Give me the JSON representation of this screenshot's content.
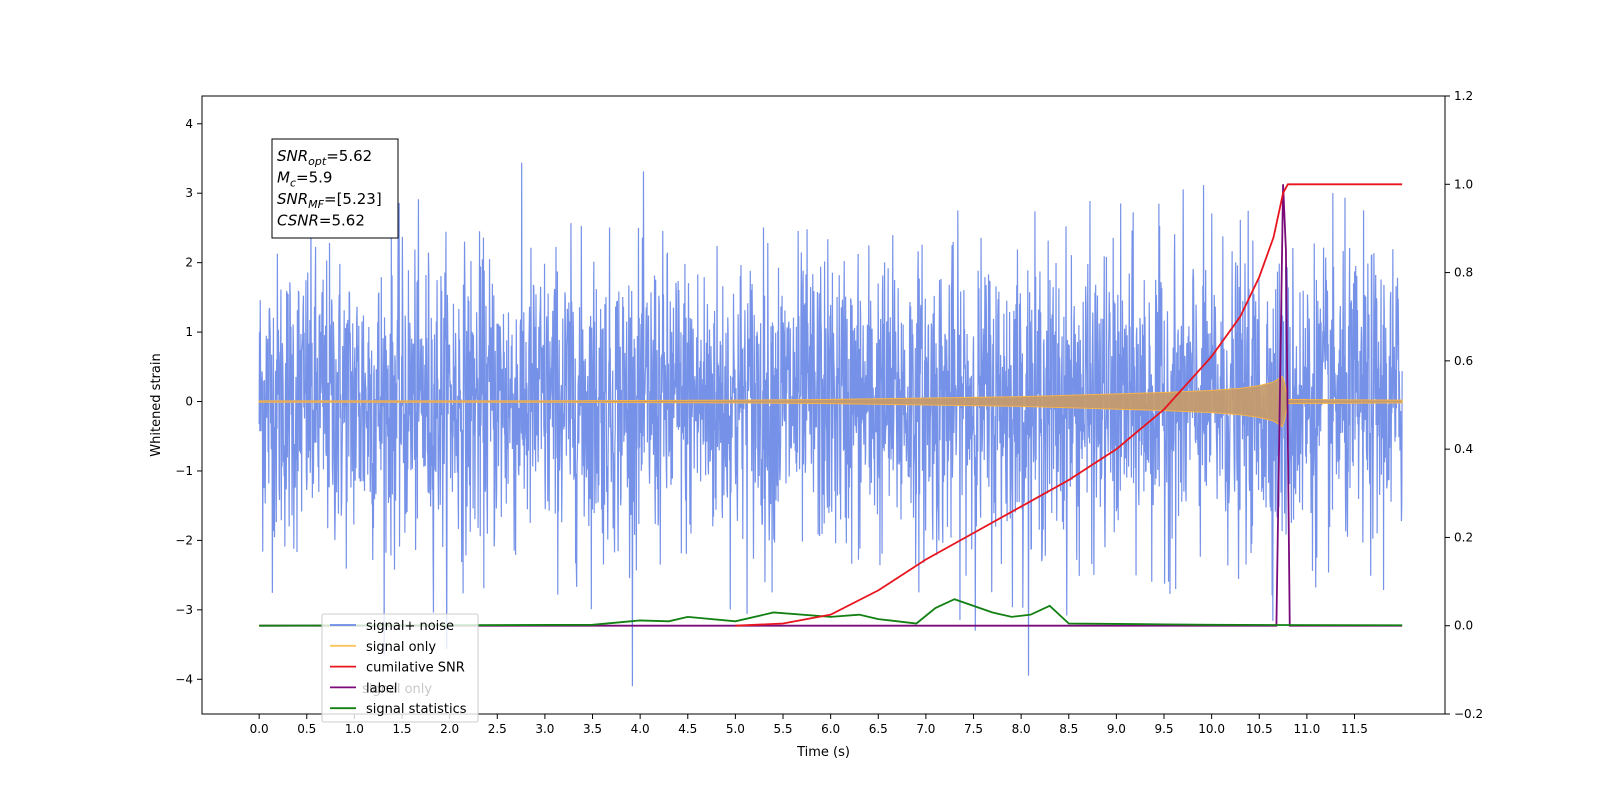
{
  "chart_data": {
    "type": "line",
    "xlabel": "Time (s)",
    "ylabel": "Whitened strain",
    "xlim": [
      -0.6,
      12.45
    ],
    "ylim": [
      -4.5,
      4.4
    ],
    "ylim_right": [
      -0.2,
      1.2
    ],
    "x_ticks": [
      "0.0",
      "0.5",
      "1.0",
      "1.5",
      "2.0",
      "2.5",
      "3.0",
      "3.5",
      "4.0",
      "4.5",
      "5.0",
      "5.5",
      "6.0",
      "6.5",
      "7.0",
      "7.5",
      "8.0",
      "8.5",
      "9.0",
      "9.5",
      "10.0",
      "10.5",
      "11.0",
      "11.5"
    ],
    "y_ticks_left": [
      "−4",
      "−3",
      "−2",
      "−1",
      "0",
      "1",
      "2",
      "3",
      "4"
    ],
    "y_ticks_right": [
      "−0.2",
      "0.0",
      "0.2",
      "0.4",
      "0.6",
      "0.8",
      "1.0",
      "1.2"
    ],
    "grid": false,
    "legend_position": "lower-left",
    "annotation": [
      {
        "main": "SNR",
        "sub": "opt",
        "value": "=5.62"
      },
      {
        "main": "M",
        "sub": "c",
        "value": "=5.9"
      },
      {
        "main": "SNR",
        "sub": "MF",
        "value": "=[5.23]"
      },
      {
        "main": "CSNR",
        "sub": "",
        "value": "=5.62"
      }
    ],
    "series": [
      {
        "name": "signal+ noise",
        "color": "#6a89e6",
        "axis": "left",
        "description_x_range": [
          0.0,
          12.0
        ],
        "amplitude_range": [
          -4.1,
          4.05
        ]
      },
      {
        "name": "signal only",
        "color": "#f5b34a",
        "axis": "left",
        "x": [
          0.0,
          3.0,
          5.0,
          6.0,
          7.0,
          8.0,
          9.0,
          9.5,
          10.0,
          10.3,
          10.5,
          10.65,
          10.75,
          10.8,
          12.0
        ],
        "envelope": [
          0.01,
          0.01,
          0.02,
          0.03,
          0.05,
          0.07,
          0.11,
          0.13,
          0.16,
          0.19,
          0.23,
          0.28,
          0.37,
          0.03,
          0.02
        ]
      },
      {
        "name": "cumilative SNR",
        "color": "#e8141e",
        "axis": "right",
        "x": [
          5.0,
          5.5,
          6.0,
          6.5,
          7.0,
          7.5,
          8.0,
          8.5,
          9.0,
          9.5,
          10.0,
          10.3,
          10.5,
          10.65,
          10.75,
          10.8,
          12.0
        ],
        "y": [
          0.0,
          0.005,
          0.025,
          0.08,
          0.15,
          0.21,
          0.27,
          0.33,
          0.4,
          0.49,
          0.61,
          0.7,
          0.79,
          0.88,
          0.98,
          1.0,
          1.0
        ]
      },
      {
        "name": "label",
        "color": "#7a0a7a",
        "axis": "right",
        "x": [
          0.0,
          10.68,
          10.75,
          10.78,
          10.82,
          12.0
        ],
        "y": [
          0.0,
          0.0,
          1.0,
          0.85,
          0.0,
          0.0
        ]
      },
      {
        "name": "signal statistics",
        "color": "#128012",
        "axis": "right",
        "x": [
          0.0,
          3.5,
          4.0,
          4.3,
          4.5,
          5.0,
          5.4,
          6.0,
          6.3,
          6.5,
          6.9,
          7.1,
          7.3,
          7.5,
          7.7,
          7.9,
          8.1,
          8.3,
          8.5,
          9.0,
          9.5,
          10.0,
          12.0
        ],
        "y": [
          0.0,
          0.002,
          0.012,
          0.01,
          0.02,
          0.01,
          0.03,
          0.02,
          0.025,
          0.015,
          0.005,
          0.04,
          0.06,
          0.045,
          0.03,
          0.02,
          0.025,
          0.045,
          0.005,
          0.004,
          0.003,
          0.002,
          0.001
        ]
      }
    ],
    "extra_legend_text": "signal only"
  }
}
